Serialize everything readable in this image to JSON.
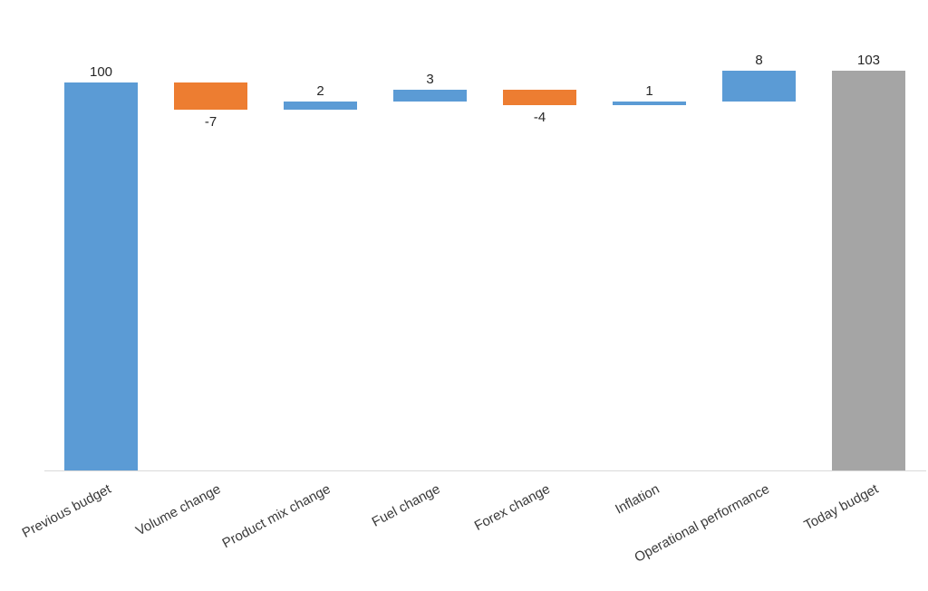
{
  "chart_data": {
    "type": "bar",
    "subtype": "waterfall",
    "title": "",
    "xlabel": "",
    "ylabel": "",
    "categories": [
      "Previous budget",
      "Volume change",
      "Product mix change",
      "Fuel change",
      "Forex change",
      "Inflation",
      "Operational performance",
      "Today budget"
    ],
    "series": [
      {
        "name": "Budget bridge",
        "values": [
          100,
          -7,
          2,
          3,
          -4,
          1,
          8,
          103
        ],
        "roles": [
          "total",
          "delta",
          "delta",
          "delta",
          "delta",
          "delta",
          "delta",
          "total"
        ]
      }
    ],
    "data_labels": [
      "100",
      "-7",
      "2",
      "3",
      "-4",
      "1",
      "8",
      "103"
    ],
    "ylim": [
      0,
      120
    ],
    "grid": false,
    "legend": "none",
    "category_label_rotation_deg": -28,
    "colors": {
      "increase": "#5B9BD5",
      "decrease": "#ED7D31",
      "total_start": "#5B9BD5",
      "total_end": "#A5A5A5",
      "axis_line": "#D9D9D9",
      "data_label_text": "#262626",
      "category_label_text": "#3A3A3A",
      "background": "#FFFFFF"
    }
  }
}
